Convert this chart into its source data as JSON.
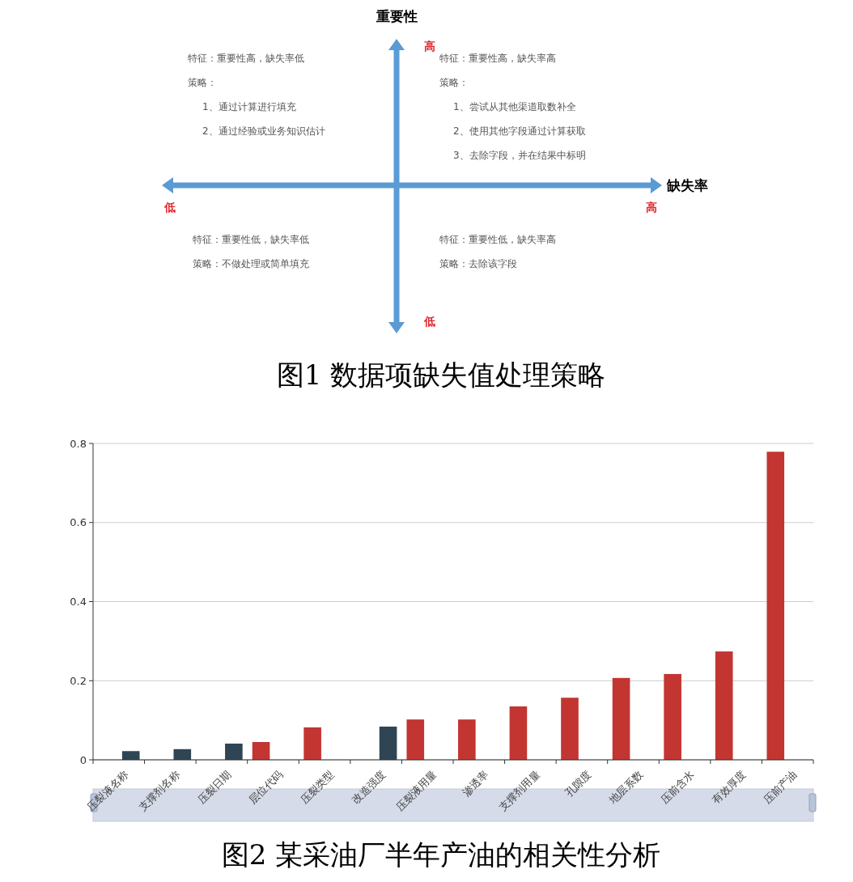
{
  "chart_data": [
    {
      "type": "other",
      "title": "图1  数据项缺失值处理策略",
      "xlabel": "缺失率",
      "ylabel": "重要性",
      "annotations": [
        "特征：重要性高，缺失率低",
        "策略：",
        "1、通过计算进行填充",
        "2、通过经验或业务知识估计",
        "特征：重要性高，缺失率高",
        "策略：",
        "1、尝试从其他渠道取数补全",
        "2、使用其他字段通过计算获取",
        "3、去除字段，并在结果中标明",
        "特征：重要性低，缺失率低",
        "策略：不做处理或简单填充",
        "特征：重要性低，缺失率高",
        "策略：去除该字段",
        "高",
        "低",
        "低",
        "高"
      ]
    },
    {
      "type": "bar",
      "title": "图2  某采油厂半年产油的相关性分析",
      "categories": [
        "压裂液名称",
        "支撑剂名称",
        "压裂日期",
        "层位代码",
        "压裂类型",
        "改造强度",
        "压裂液用量",
        "渗透率",
        "支撑剂用量",
        "孔隙度",
        "地层系数",
        "压前含水",
        "有效厚度",
        "压前产油"
      ],
      "series": [
        {
          "color": "#c23531",
          "values": [
            null,
            null,
            null,
            0.045,
            0.082,
            null,
            0.102,
            0.102,
            0.135,
            0.157,
            0.207,
            0.217,
            0.274,
            0.779
          ]
        },
        {
          "color": "#2f4554",
          "values": [
            0.022,
            0.027,
            0.041,
            null,
            null,
            0.084,
            null,
            null,
            null,
            null,
            null,
            null,
            null,
            null
          ]
        }
      ],
      "ylim": [
        0,
        0.8
      ],
      "yticks": [
        0,
        0.2,
        0.4,
        0.6,
        0.8
      ],
      "grid": "y"
    }
  ]
}
